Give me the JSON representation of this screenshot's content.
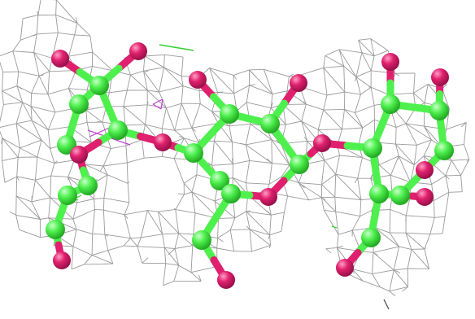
{
  "viewer": {
    "background": "#ffffff",
    "colors": {
      "carbon": "#4ef04e",
      "carbon_highlight": "#c8ffc8",
      "oxygen": "#e0206e",
      "oxygen_highlight": "#ff9ec4",
      "density_mesh": "#9a9a9a",
      "annotation_magenta": "#c040d0",
      "annotation_green": "#30d030"
    },
    "molecule": {
      "representation": "ball-and-stick",
      "atom_elements": [
        "C",
        "O"
      ],
      "units": [
        "sugar-ring-left",
        "sugar-ring-center",
        "sugar-ring-right"
      ]
    },
    "mesh": {
      "type": "electron-density-wireframe",
      "style": "mesh"
    }
  }
}
